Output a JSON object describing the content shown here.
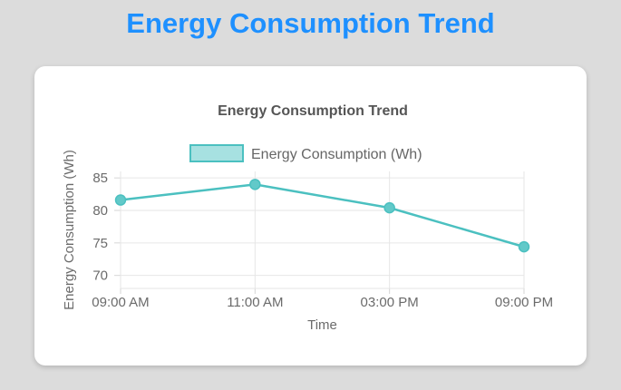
{
  "page": {
    "title": "Energy Consumption Trend",
    "title_color": "#1e90ff",
    "background_color": "#dcdcdc",
    "card_color": "#ffffff"
  },
  "chart_data": {
    "type": "line",
    "title": "Energy Consumption Trend",
    "categories": [
      "09:00 AM",
      "11:00 AM",
      "03:00 PM",
      "09:00 PM"
    ],
    "series": [
      {
        "name": "Energy Consumption (Wh)",
        "values": [
          81.6,
          84,
          80.4,
          74.4
        ]
      }
    ],
    "xlabel": "Time",
    "ylabel": "Energy Consumption (Wh)",
    "yticks": [
      70,
      75,
      80,
      85
    ],
    "ylim": [
      68,
      86
    ],
    "grid": true,
    "legend_position": "top",
    "line_color": "#4bc0c0",
    "point_fill": "#62c9c9",
    "legend_swatch_fill": "#a7e1e1",
    "grid_color": "#e6e6e6",
    "tick_mark_color": "#d6d6d6",
    "text_color": "#6b6b6b",
    "title_color": "#555555"
  }
}
